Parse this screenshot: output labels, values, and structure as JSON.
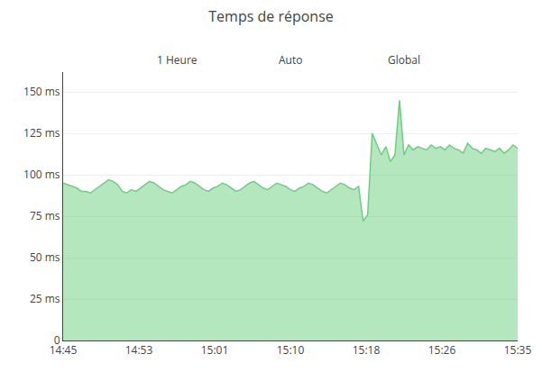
{
  "chart_data": {
    "type": "area",
    "title": "Temps de réponse",
    "annotations": [
      "1 Heure",
      "Auto",
      "Global"
    ],
    "x": [
      0,
      1,
      2,
      3,
      4,
      5,
      6,
      7,
      8,
      9,
      10,
      11,
      12,
      13,
      14,
      15,
      16,
      17,
      18,
      19,
      20,
      21,
      22,
      23,
      24,
      25,
      26,
      27,
      28,
      29,
      30,
      31,
      32,
      33,
      34,
      35,
      36,
      37,
      38,
      39,
      40,
      41,
      42,
      43,
      44,
      45,
      46,
      47,
      48,
      49,
      50,
      51,
      52,
      53,
      54,
      55,
      56,
      57,
      58,
      59,
      60,
      61,
      62,
      63,
      64,
      65,
      66,
      67,
      68,
      69,
      70,
      71,
      72,
      73,
      74,
      75,
      76,
      77,
      78,
      79,
      80,
      81,
      82,
      83,
      84,
      85,
      86,
      87,
      88,
      89,
      90,
      91,
      92,
      93,
      94,
      95,
      96,
      97,
      98,
      99,
      100
    ],
    "values": [
      95,
      94,
      93,
      92,
      90,
      90,
      89,
      91,
      93,
      95,
      97,
      96,
      94,
      90,
      89,
      91,
      90,
      92,
      94,
      96,
      95,
      93,
      91,
      90,
      89,
      91,
      93,
      94,
      96,
      95,
      93,
      91,
      90,
      92,
      93,
      95,
      94,
      92,
      90,
      91,
      93,
      95,
      96,
      94,
      92,
      91,
      93,
      95,
      94,
      93,
      91,
      90,
      92,
      93,
      95,
      94,
      92,
      90,
      89,
      91,
      93,
      95,
      94,
      92,
      91,
      93,
      72,
      76,
      125,
      118,
      112,
      117,
      108,
      112,
      145,
      112,
      118,
      115,
      117,
      116,
      115,
      118,
      116,
      117,
      115,
      118,
      116,
      115,
      113,
      119,
      116,
      115,
      113,
      116,
      115,
      114,
      116,
      113,
      115,
      118,
      116
    ],
    "color": "#6ccf7f",
    "xlim": [
      0,
      100
    ],
    "xticks": [
      {
        "value": 0,
        "label": "14:45"
      },
      {
        "value": 16.666666666666668,
        "label": "14:53"
      },
      {
        "value": 33.333333333333336,
        "label": "15:01"
      },
      {
        "value": 50,
        "label": "15:10"
      },
      {
        "value": 66.66666666666667,
        "label": "15:18"
      },
      {
        "value": 83.33333333333334,
        "label": "15:26"
      },
      {
        "value": 100,
        "label": "15:35"
      }
    ],
    "ylim": [
      0,
      162
    ],
    "yticks": [
      0,
      {
        "value": 25,
        "label": "25 ms"
      },
      {
        "value": 50,
        "label": "50 ms"
      },
      {
        "value": 75,
        "label": "75 ms"
      },
      {
        "value": 100,
        "label": "100 ms"
      },
      {
        "value": 125,
        "label": "125 ms"
      },
      {
        "value": 150,
        "label": "150 ms"
      }
    ],
    "grid": true
  }
}
